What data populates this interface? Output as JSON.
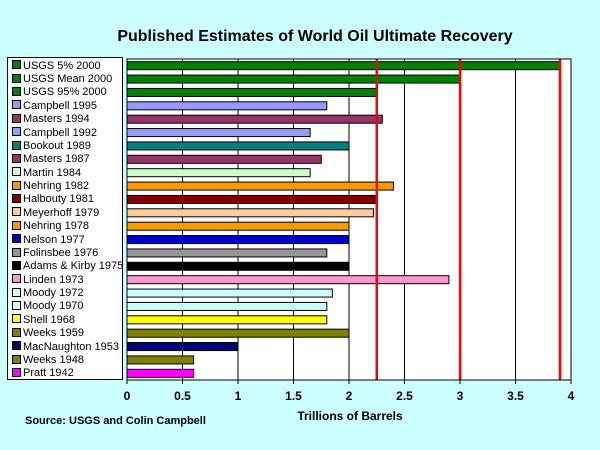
{
  "chart_data": {
    "type": "bar",
    "orientation": "horizontal",
    "title": "Published Estimates of World Oil Ultimate Recovery",
    "xlabel": "Trillions of Barrels",
    "ylabel": "",
    "xlim": [
      0,
      4
    ],
    "xticks": [
      "0",
      "0.5",
      "1",
      "1.5",
      "2",
      "2.5",
      "3",
      "3.5",
      "4"
    ],
    "grid": "vertical",
    "legend_position": "left",
    "categories": [
      "USGS 5% 2000",
      "USGS Mean 2000",
      "USGS 95% 2000",
      "Campbell 1995",
      "Masters 1994",
      "Campbell 1992",
      "Bookout 1989",
      "Masters 1987",
      "Martin 1984",
      "Nehring 1982",
      "Halbouty 1981",
      "Meyerhoff 1979",
      "Nehring 1978",
      "Nelson 1977",
      "Folinsbee 1976",
      "Adams & Kirby 1975",
      "Linden 1973",
      "Moody 1972",
      "Moody 1970",
      "Shell 1968",
      "Weeks 1959",
      "MacNaughton 1953",
      "Weeks 1948",
      "Pratt 1942"
    ],
    "values": [
      3.9,
      3.0,
      2.25,
      1.8,
      2.3,
      1.65,
      2.0,
      1.75,
      1.65,
      2.4,
      2.25,
      2.22,
      2.0,
      2.0,
      1.8,
      2.0,
      2.9,
      1.85,
      1.8,
      1.8,
      2.0,
      1.0,
      0.6,
      0.6
    ],
    "colors": [
      "#008000",
      "#008000",
      "#008000",
      "#9999ff",
      "#993366",
      "#9999ff",
      "#008080",
      "#993366",
      "#ccffcc",
      "#ff9900",
      "#800000",
      "#ffcc99",
      "#ff9900",
      "#0000cc",
      "#969696",
      "#000000",
      "#ff99cc",
      "#ccffff",
      "#ccffff",
      "#ffff00",
      "#808000",
      "#000080",
      "#808000",
      "#ff00ff"
    ],
    "reference_lines": [
      {
        "x": 2.25,
        "color": "#ff0000"
      },
      {
        "x": 3.0,
        "color": "#ff0000"
      },
      {
        "x": 3.9,
        "color": "#ff0000"
      }
    ]
  },
  "source": "Source:  USGS and Colin Campbell"
}
